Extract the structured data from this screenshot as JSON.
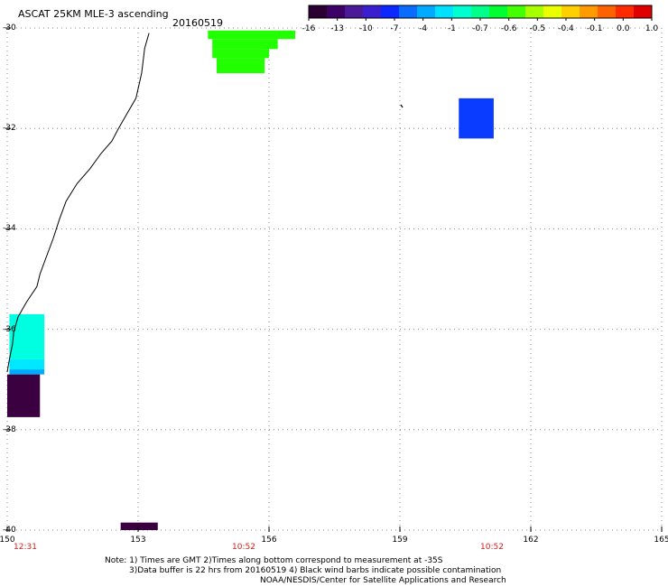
{
  "header": {
    "title": "ASCAT 25KM MLE-3 ascending",
    "date": "20160519"
  },
  "colorbar": {
    "labels": [
      "-16",
      "-13",
      "-10",
      "-7",
      "-4",
      "-1",
      "-0.7",
      "-0.6",
      "-0.5",
      "-0.4",
      "-0.1",
      "0.0",
      "1.0"
    ],
    "colors": [
      "#2a0033",
      "#3d0066",
      "#4a1a99",
      "#3a1fd0",
      "#0a28ff",
      "#0a6cff",
      "#00aaff",
      "#00e0ff",
      "#00ffd0",
      "#00ff8a",
      "#00ff30",
      "#44ff00",
      "#a8ff00",
      "#eaff00",
      "#ffd000",
      "#ff9a00",
      "#ff6200",
      "#ff2a00",
      "#e00000"
    ]
  },
  "axes": {
    "x_ticks": [
      "150",
      "153",
      "156",
      "159",
      "162",
      "165"
    ],
    "y_ticks": [
      "-30",
      "-32",
      "-34",
      "-36",
      "-38",
      "-40"
    ]
  },
  "pass_times": [
    "12:31",
    "10:52",
    "10:52"
  ],
  "notes": {
    "line1": "Note: 1) Times are GMT 2)Times along bottom correspond to measurement at -35S",
    "line2": "3)Data buffer is 22 hrs from 20160519 4) Black wind barbs indicate possible contamination",
    "line3": "NOAA/NESDIS/Center for Satellite Applications and Research"
  },
  "chart_data": {
    "type": "heatmap",
    "title": "ASCAT 25KM MLE-3 ascending",
    "date": "20160519",
    "xlim": [
      150,
      165
    ],
    "ylim": [
      -40,
      -30
    ],
    "x_ticks": [
      150,
      153,
      156,
      159,
      162,
      165
    ],
    "y_ticks": [
      -30,
      -32,
      -34,
      -36,
      -38,
      -40
    ],
    "grid": true,
    "colorbar_ticks": [
      "-16",
      "-13",
      "-10",
      "-7",
      "-4",
      "-1",
      "-0.7",
      "-0.6",
      "-0.5",
      "-0.4",
      "-0.1",
      "0.0",
      "1.0"
    ],
    "cells": [
      {
        "lon_min": 154.6,
        "lon_max": 156.6,
        "lat_min": -30.22,
        "lat_max": -30.05,
        "color": "#22ff00"
      },
      {
        "lon_min": 154.7,
        "lon_max": 156.2,
        "lat_min": -30.42,
        "lat_max": -30.22,
        "color": "#22ff00"
      },
      {
        "lon_min": 154.7,
        "lon_max": 156.0,
        "lat_min": -30.6,
        "lat_max": -30.42,
        "color": "#22ff00"
      },
      {
        "lon_min": 154.8,
        "lon_max": 155.9,
        "lat_min": -30.9,
        "lat_max": -30.6,
        "color": "#22ff00"
      },
      {
        "lon_min": 160.35,
        "lon_max": 161.15,
        "lat_min": -32.2,
        "lat_max": -31.4,
        "color": "#0a3cff"
      },
      {
        "lon_min": 150.05,
        "lon_max": 150.85,
        "lat_min": -36.6,
        "lat_max": -35.7,
        "color": "#00ffe0"
      },
      {
        "lon_min": 150.05,
        "lon_max": 150.85,
        "lat_min": -36.8,
        "lat_max": -36.6,
        "color": "#00e8ff"
      },
      {
        "lon_min": 150.05,
        "lon_max": 150.85,
        "lat_min": -36.9,
        "lat_max": -36.8,
        "color": "#00aaff"
      },
      {
        "lon_min": 150.0,
        "lon_max": 150.75,
        "lat_min": -37.75,
        "lat_max": -36.9,
        "color": "#3a003f"
      },
      {
        "lon_min": 152.6,
        "lon_max": 153.45,
        "lat_min": -40.0,
        "lat_max": -39.85,
        "color": "#3a003f"
      }
    ],
    "coastline": [
      [
        153.25,
        -30.1
      ],
      [
        153.15,
        -30.4
      ],
      [
        153.08,
        -30.9
      ],
      [
        152.95,
        -31.4
      ],
      [
        152.75,
        -31.7
      ],
      [
        152.55,
        -32.0
      ],
      [
        152.4,
        -32.25
      ],
      [
        152.15,
        -32.5
      ],
      [
        151.9,
        -32.8
      ],
      [
        151.6,
        -33.1
      ],
      [
        151.35,
        -33.45
      ],
      [
        151.2,
        -33.8
      ],
      [
        151.05,
        -34.2
      ],
      [
        150.9,
        -34.55
      ],
      [
        150.75,
        -34.9
      ],
      [
        150.68,
        -35.15
      ],
      [
        150.45,
        -35.45
      ],
      [
        150.25,
        -35.75
      ],
      [
        150.15,
        -36.05
      ],
      [
        150.12,
        -36.3
      ],
      [
        150.05,
        -36.6
      ],
      [
        150.0,
        -36.85
      ]
    ]
  }
}
